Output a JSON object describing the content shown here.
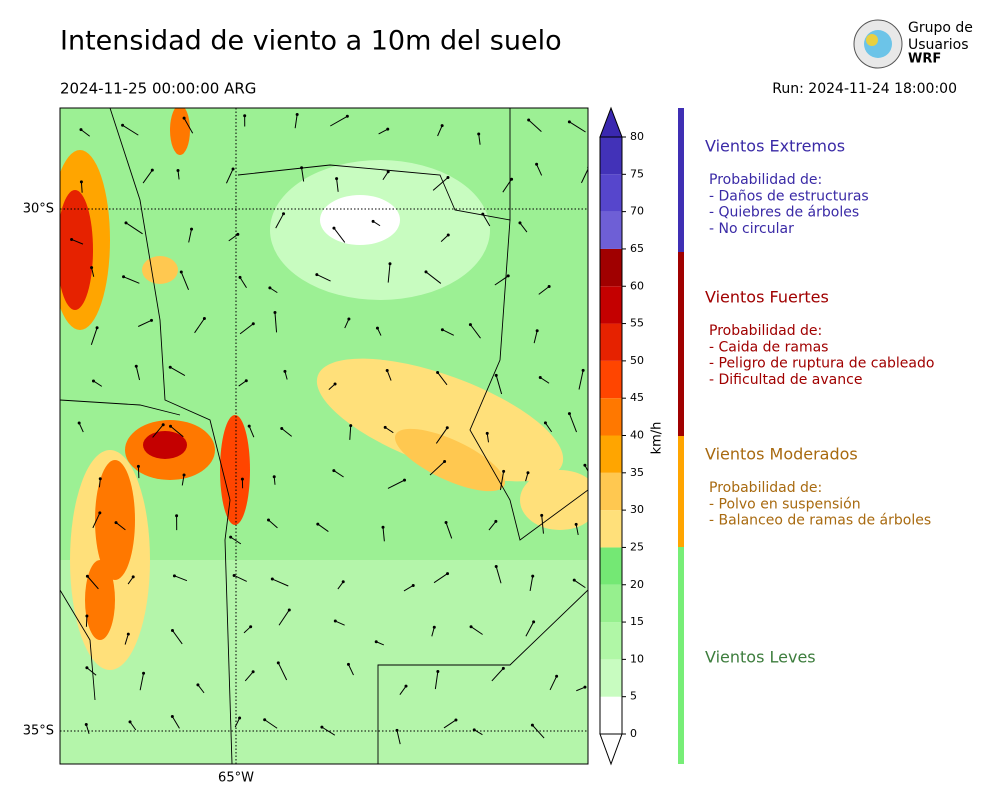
{
  "header": {
    "title": "Intensidad de viento a 10m del suelo",
    "valid_time": "2024-11-25 00:00:00 ARG",
    "run": "Run: 2024-11-24 18:00:00"
  },
  "logo": {
    "lines": [
      "Grupo de",
      "Usuarios",
      "WRF"
    ]
  },
  "map": {
    "lat_labels": [
      "30°S",
      "35°S"
    ],
    "lon_labels": [
      "65°W"
    ]
  },
  "colorbar": {
    "label": "km/h",
    "ticks": [
      0,
      5,
      10,
      15,
      20,
      25,
      30,
      35,
      40,
      45,
      50,
      55,
      60,
      65,
      70,
      75,
      80
    ],
    "colors": [
      "#ffffff",
      "#c8fcc0",
      "#b0f7a6",
      "#96f08e",
      "#74e874",
      "#ffe07a",
      "#ffc850",
      "#ffa500",
      "#ff7800",
      "#ff4500",
      "#e62200",
      "#c40000",
      "#a00000",
      "#6e5fd6",
      "#5646cc",
      "#4232b8"
    ]
  },
  "categories": [
    {
      "title": "Vientos Extremos",
      "text_color": "#3a2aa6",
      "bar_color": "#3f2fb4",
      "lines": [
        "Probabilidad de:",
        "- Daños de estructuras",
        "- Quiebres de árboles",
        "- No circular"
      ]
    },
    {
      "title": "Vientos Fuertes",
      "text_color": "#a00000",
      "bar_color": "#a00000",
      "lines": [
        "Probabilidad de:",
        "- Caida de ramas",
        "- Peligro de ruptura de cableado",
        "- Dificultad de avance"
      ]
    },
    {
      "title": "Vientos Moderados",
      "text_color": "#a86a10",
      "bar_color": "#ffa500",
      "lines": [
        "Probabilidad de:",
        "- Polvo en suspensión",
        "- Balanceo de ramas de árboles"
      ]
    },
    {
      "title": "Vientos Leves",
      "text_color": "#3d7d3d",
      "bar_color": "#77ee77",
      "lines": []
    }
  ]
}
